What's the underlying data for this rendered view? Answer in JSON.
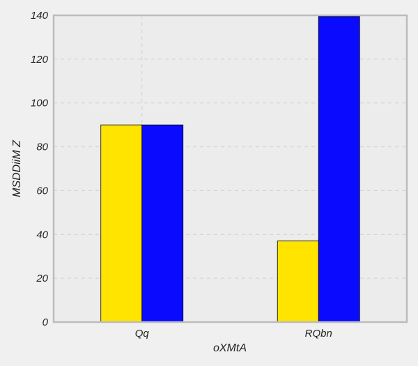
{
  "chart_data": {
    "type": "bar",
    "title": "",
    "xlabel": "oXMtA",
    "ylabel": "MSDDiiM Z",
    "categories": [
      "Qq",
      "RQbn"
    ],
    "series": [
      {
        "color": "#ffe400",
        "values": [
          90,
          37
        ]
      },
      {
        "color": "#0a0aff",
        "values": [
          90,
          139.5
        ]
      }
    ],
    "ylim": [
      0,
      140
    ],
    "yticks": [
      0,
      20,
      40,
      60,
      80,
      100,
      120,
      140
    ],
    "grid": true,
    "legend": "none"
  }
}
